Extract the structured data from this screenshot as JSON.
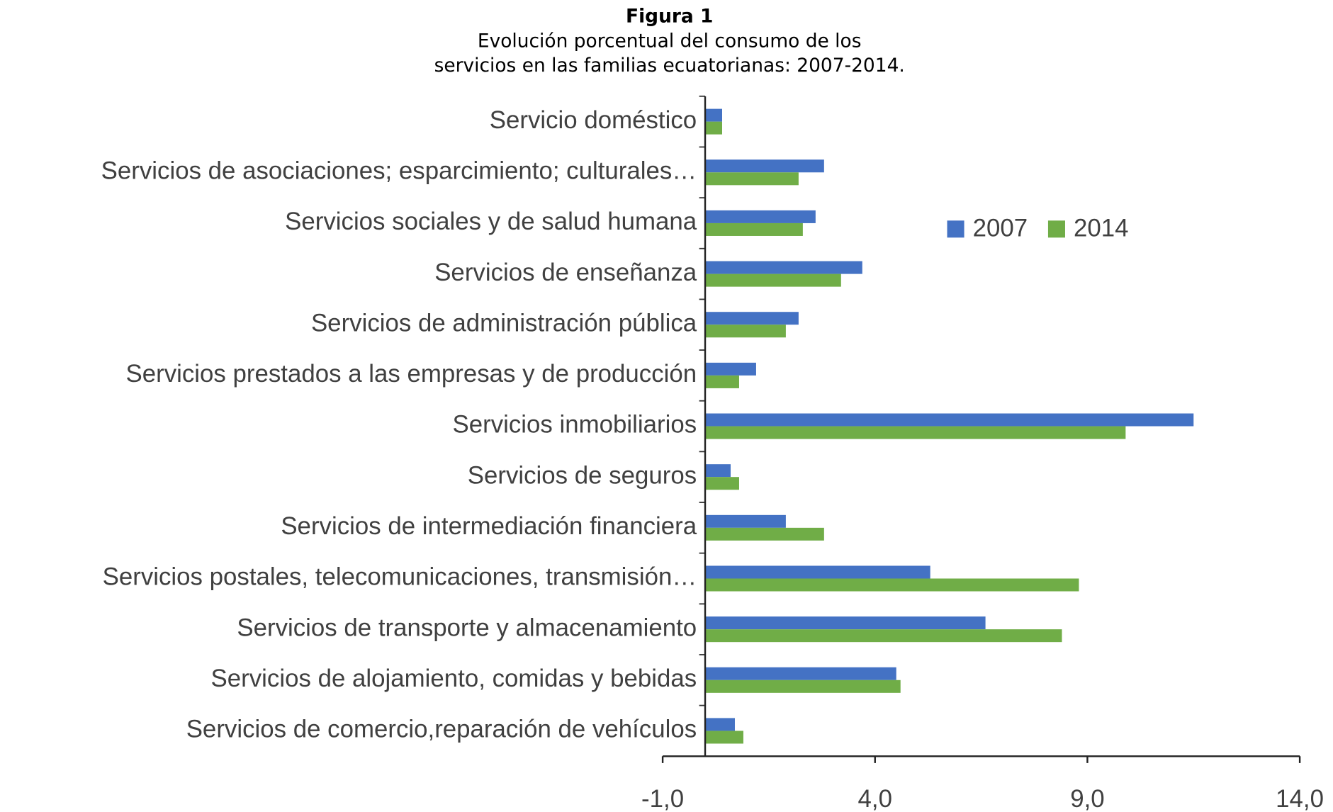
{
  "chart_data": {
    "type": "bar",
    "orientation": "horizontal",
    "title": "Figura 1",
    "subtitle": [
      "Evolución porcentual del consumo de los",
      "servicios en las familias ecuatorianas: 2007-2014."
    ],
    "categories": [
      "Servicio doméstico",
      "Servicios de asociaciones; esparcimiento; culturales…",
      "Servicios sociales y de salud humana",
      "Servicios de enseñanza",
      "Servicios de administración pública",
      "Servicios prestados a las empresas y de producción",
      "Servicios inmobiliarios",
      "Servicios de seguros",
      "Servicios de intermediación financiera",
      "Servicios postales, telecomunicaciones, transmisión…",
      "Servicios de transporte y almacenamiento",
      "Servicios de alojamiento, comidas y bebidas",
      "Servicios de comercio,reparación de vehículos"
    ],
    "series": [
      {
        "name": "2007",
        "color": "#4472c4",
        "values": [
          0.4,
          2.8,
          2.6,
          3.7,
          2.2,
          1.2,
          11.5,
          0.6,
          1.9,
          5.3,
          6.6,
          4.5,
          0.7
        ]
      },
      {
        "name": "2014",
        "color": "#70ad47",
        "values": [
          0.4,
          2.2,
          2.3,
          3.2,
          1.9,
          0.8,
          9.9,
          0.8,
          2.8,
          8.8,
          8.4,
          4.6,
          0.9
        ]
      }
    ],
    "xlim": [
      -1,
      14
    ],
    "xticks": [
      {
        "value": -1,
        "label": "-1,0"
      },
      {
        "value": 4,
        "label": "4,0"
      },
      {
        "value": 9,
        "label": "9,0"
      },
      {
        "value": 14,
        "label": "14,0"
      }
    ],
    "legend": "upper right",
    "grid": false
  }
}
